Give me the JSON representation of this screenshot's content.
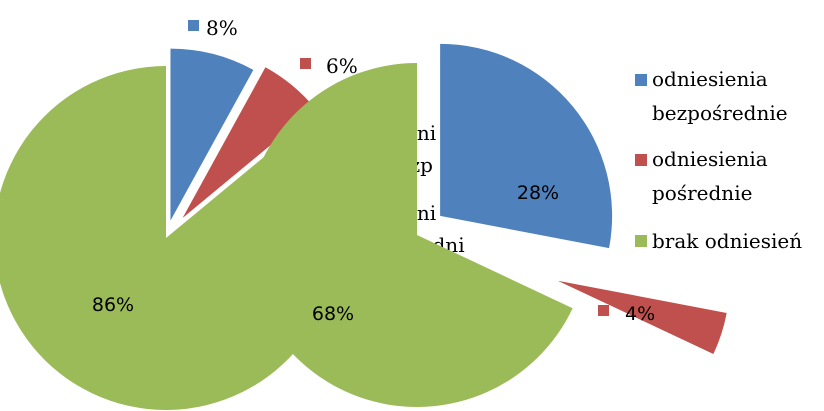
{
  "colors": {
    "blue": "#4F81BD",
    "red": "#C0504D",
    "green": "#9BBB59",
    "text": "#000000"
  },
  "legend_placement": "right",
  "chart_data": [
    {
      "type": "pie",
      "exploded": true,
      "categories": [
        "odniesienia bezpośrednie",
        "odniesienia pośrednie",
        "brak odniesień"
      ],
      "values": [
        8,
        6,
        86
      ],
      "data_labels": [
        "8%",
        "6%",
        "86%"
      ]
    },
    {
      "type": "pie",
      "exploded": true,
      "categories": [
        "odniesienia bezpośrednie",
        "odniesienia pośrednie",
        "brak odniesień"
      ],
      "values": [
        28,
        4,
        68
      ],
      "data_labels": [
        "28%",
        "4%",
        "68%"
      ]
    }
  ],
  "legend": {
    "items": [
      {
        "line1": "odniesienia",
        "line2": "bezpośrednie",
        "color": "#4F81BD"
      },
      {
        "line1": "odniesienia",
        "line2": "pośrednie",
        "color": "#C0504D"
      },
      {
        "line1": "brak odniesień",
        "line2": "",
        "color": "#9BBB59"
      }
    ]
  },
  "ghost_labels": [
    "odni",
    "bezp",
    "odni",
    "pośredni"
  ]
}
